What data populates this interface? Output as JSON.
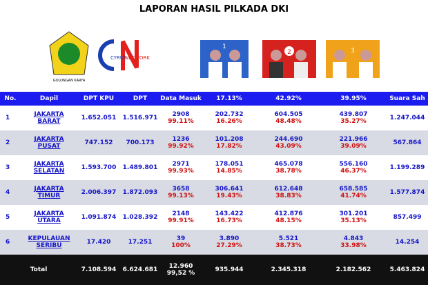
{
  "header": {
    "title": "LAPORAN HASIL PILKADA DKI"
  },
  "logos": {
    "golkar": "GOLONGAN KARYA",
    "cyrus_left": "CYRUS",
    "cyrus_right": "NETWORK",
    "photos": [
      "1",
      "2",
      "3"
    ]
  },
  "table": {
    "columns": [
      "No.",
      "Dapil",
      "DPT KPU",
      "DPT",
      "Data Masuk",
      "17.13%",
      "42.92%",
      "39.95%",
      "Suara Sah"
    ],
    "rows": [
      [
        "1",
        "JAKARTA BARAT",
        "1.652.051",
        "1.516.971",
        "2908",
        "99.11%",
        "202.732",
        "16.26%",
        "604.505",
        "48.48%",
        "439.807",
        "35.27%",
        "1.247.044"
      ],
      [
        "2",
        "JAKARTA PUSAT",
        "747.152",
        "700.173",
        "1236",
        "99.92%",
        "101.208",
        "17.82%",
        "244.690",
        "43.09%",
        "221.966",
        "39.09%",
        "567.864"
      ],
      [
        "3",
        "JAKARTA SELATAN",
        "1.593.700",
        "1.489.801",
        "2971",
        "99.93%",
        "178.051",
        "14.85%",
        "465.078",
        "38.78%",
        "556.160",
        "46.37%",
        "1.199.289"
      ],
      [
        "4",
        "JAKARTA TIMUR",
        "2.006.397",
        "1.872.093",
        "3658",
        "99.13%",
        "306.641",
        "19.43%",
        "612.648",
        "38.83%",
        "658.585",
        "41.74%",
        "1.577.874"
      ],
      [
        "5",
        "JAKARTA UTARA",
        "1.091.874",
        "1.028.392",
        "2148",
        "99.91%",
        "143.422",
        "16.73%",
        "412.876",
        "48.15%",
        "301.201",
        "35.13%",
        "857.499"
      ],
      [
        "6",
        "KEPULAUAN SERIBU",
        "17.420",
        "17.251",
        "39",
        "100%",
        "3.890",
        "27.29%",
        "5.521",
        "38.73%",
        "4.843",
        "33.98%",
        "14.254"
      ]
    ],
    "total": [
      "Total",
      "7.108.594",
      "6.624.681",
      "12.960",
      "99,52 %",
      "935.944",
      "2.345.318",
      "2.182.562",
      "5.463.824"
    ]
  }
}
